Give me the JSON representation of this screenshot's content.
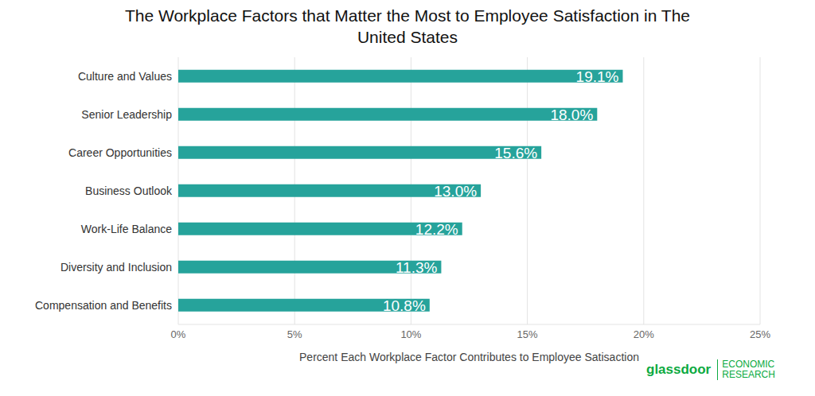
{
  "chart_data": {
    "type": "bar",
    "title": "The Workplace Factors that Matter the Most to Employee Satisfaction in The United States",
    "x_label": "Percent Each Workplace Factor Contributes to Employee Satisaction",
    "categories": [
      "Culture and Values",
      "Senior Leadership",
      "Career Opportunities",
      "Business Outlook",
      "Work-Life Balance",
      "Diversity and Inclusion",
      "Compensation and Benefits"
    ],
    "values": [
      19.1,
      18.0,
      15.6,
      13.0,
      12.2,
      11.3,
      10.8
    ],
    "value_labels": [
      "19.1%",
      "18.0%",
      "15.6%",
      "13.0%",
      "12.2%",
      "11.3%",
      "10.8%"
    ],
    "color": "#26a39b",
    "orientation": "horizontal",
    "data_labels": true,
    "grid": true,
    "xlim": [
      0,
      25
    ],
    "xticks": [
      {
        "value": 0,
        "label": "0%"
      },
      {
        "value": 5,
        "label": "5%"
      },
      {
        "value": 10,
        "label": "10%"
      },
      {
        "value": 15,
        "label": "15%"
      },
      {
        "value": 20,
        "label": "20%"
      },
      {
        "value": 25,
        "label": "25%"
      }
    ],
    "annotations": [
      "glassdoor",
      "ECONOMIC RESEARCH"
    ]
  }
}
